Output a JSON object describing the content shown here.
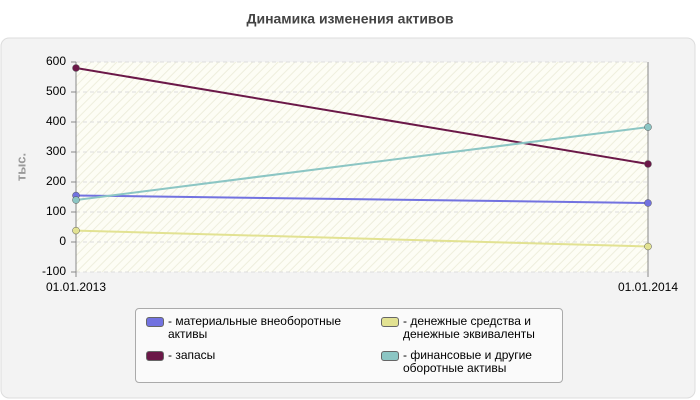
{
  "chart_data": {
    "type": "line",
    "title": "Динамика изменения активов",
    "y_label": "тыс.",
    "categories": [
      "01.01.2013",
      "01.01.2014"
    ],
    "series": [
      {
        "name": "- материальные внеоборотные активы",
        "color": "#7272e0",
        "values": [
          155,
          130
        ]
      },
      {
        "name": "- запасы",
        "color": "#6b1848",
        "values": [
          580,
          260
        ]
      },
      {
        "name": "- денежные средства и денежные эквиваленты",
        "color": "#e2e292",
        "values": [
          38,
          -15
        ]
      },
      {
        "name": "- финансовые и другие оборотные активы",
        "color": "#8cc6c4",
        "values": [
          140,
          383
        ]
      }
    ],
    "ylim": [
      -100,
      600
    ],
    "yticks": [
      -100,
      0,
      100,
      200,
      300,
      400,
      500,
      600
    ],
    "grid": true
  }
}
